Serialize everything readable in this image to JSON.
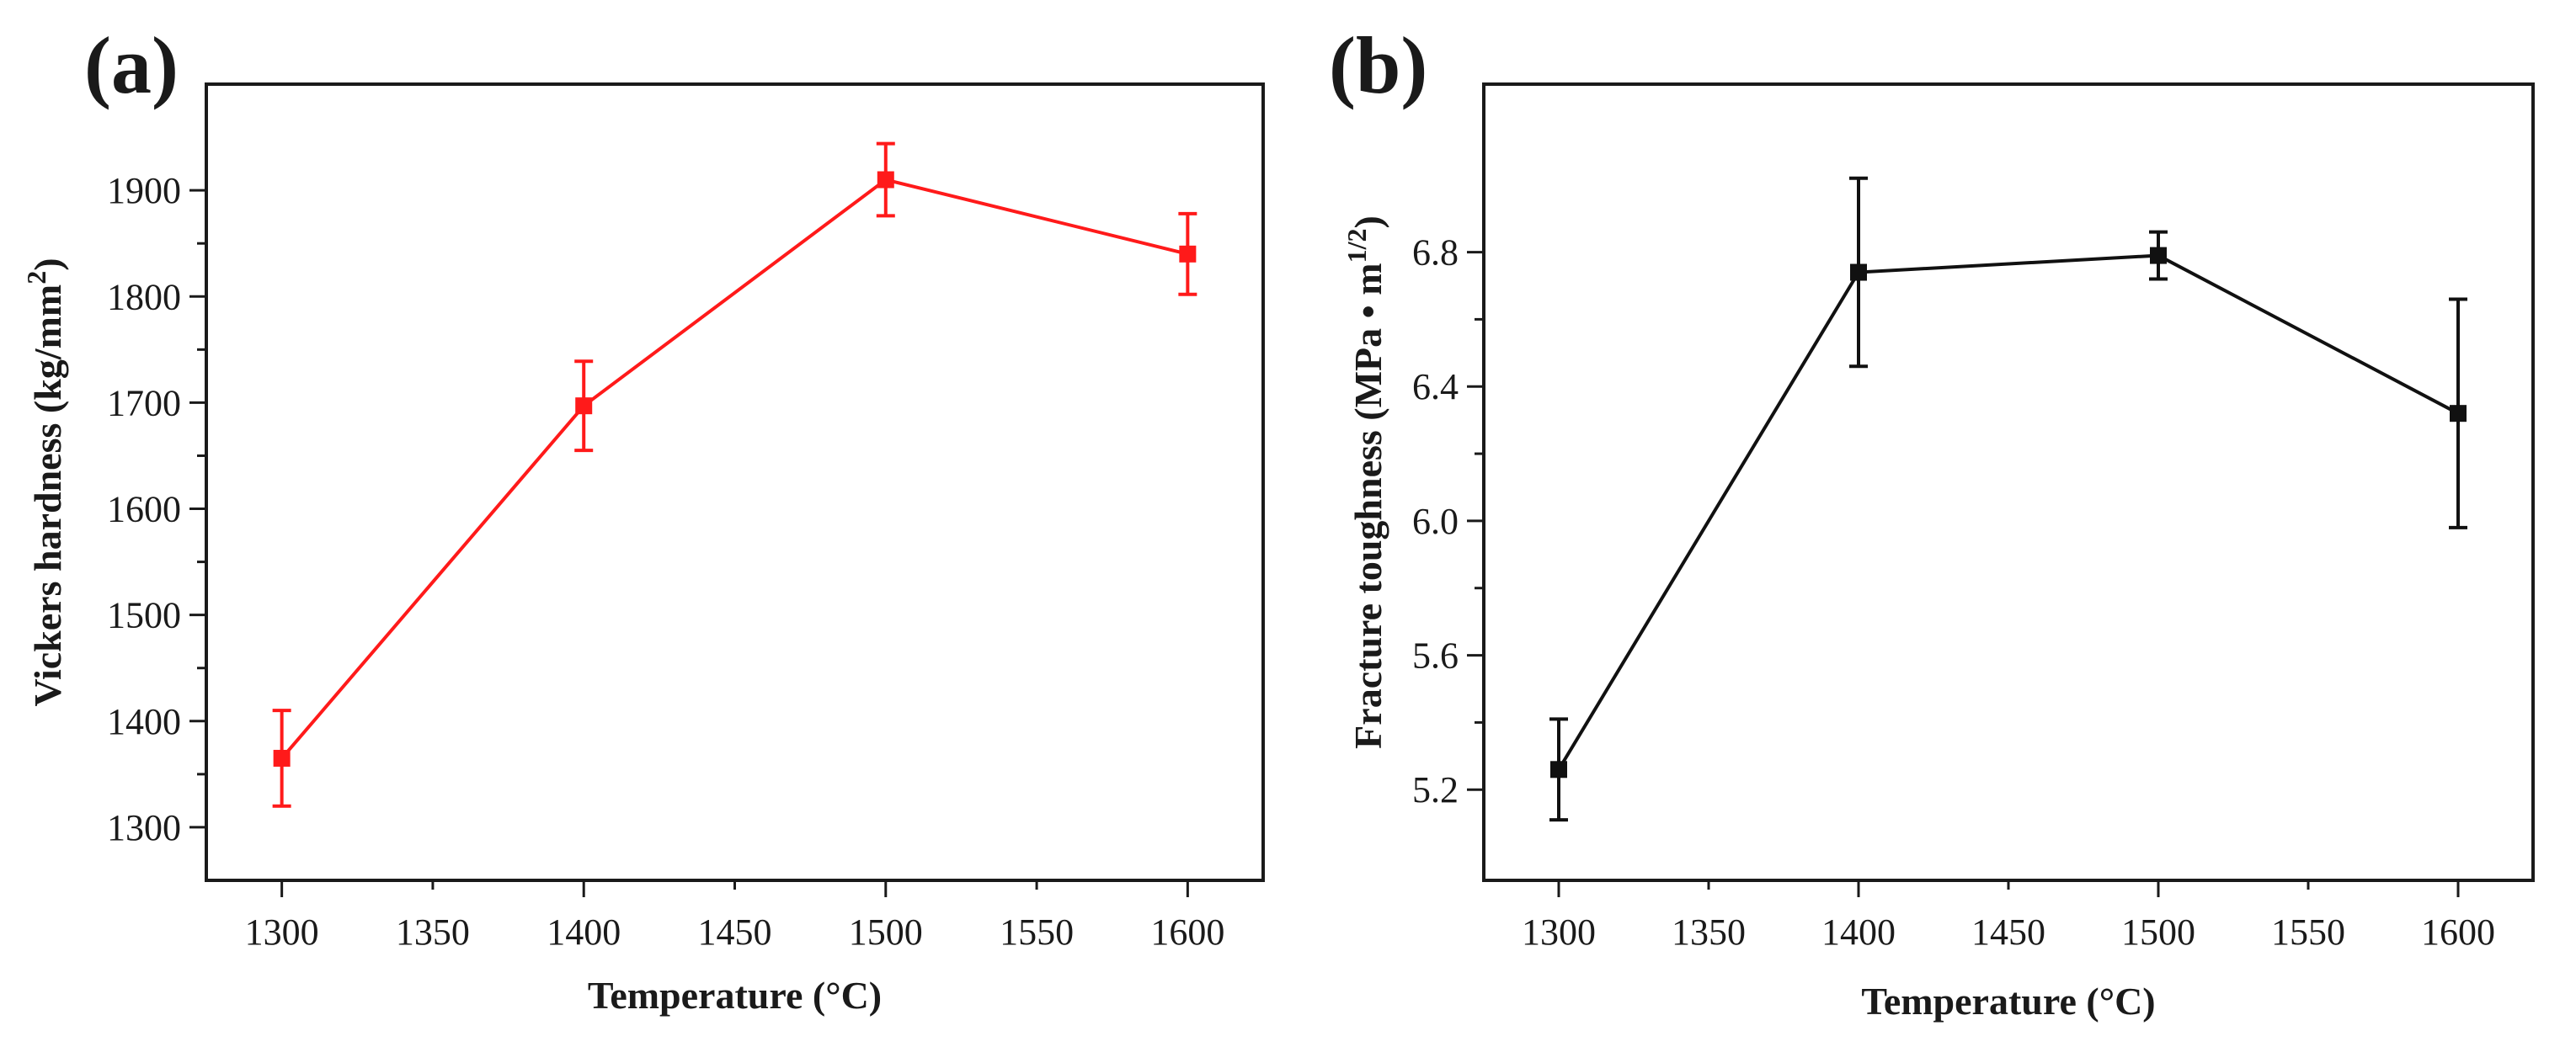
{
  "chart_data": [
    {
      "panel": "(a)",
      "type": "line",
      "xlabel": "Temperature (°C)",
      "ylabel": "Vickers hardness (kg/mm2)",
      "ylabel_main": "Vickers hardness (kg/mm",
      "ylabel_sup": "2",
      "ylabel_end": ")",
      "xlim": [
        1275,
        1625
      ],
      "ylim": [
        1250,
        2000
      ],
      "xticks": [
        1300,
        1350,
        1400,
        1450,
        1500,
        1550,
        1600
      ],
      "yticks": [
        1300,
        1400,
        1500,
        1600,
        1700,
        1800,
        1900
      ],
      "grid": false,
      "series": [
        {
          "name": "Vickers hardness",
          "color": "#ff1a1a",
          "marker": "square",
          "x": [
            1300,
            1400,
            1500,
            1600
          ],
          "y": [
            1365,
            1697,
            1910,
            1840
          ],
          "err": [
            45,
            42,
            34,
            38
          ]
        }
      ]
    },
    {
      "panel": "(b)",
      "type": "line",
      "xlabel": "Temperature (°C)",
      "ylabel": "Fracture toughness (MPa • m1/2)",
      "ylabel_main": "Fracture toughness (MPa • m",
      "ylabel_sup": "1/2",
      "ylabel_end": ")",
      "xlim": [
        1275,
        1625
      ],
      "ylim": [
        4.93,
        7.3
      ],
      "xticks": [
        1300,
        1350,
        1400,
        1450,
        1500,
        1550,
        1600
      ],
      "yticks": [
        5.2,
        5.6,
        6.0,
        6.4,
        6.8
      ],
      "ytick_labels": [
        "5.2",
        "5.6",
        "6.0",
        "6.4",
        "6.8"
      ],
      "grid": false,
      "series": [
        {
          "name": "Fracture toughness",
          "color": "#111111",
          "marker": "square",
          "x": [
            1300,
            1400,
            1500,
            1600
          ],
          "y": [
            5.26,
            6.74,
            6.79,
            6.32
          ],
          "err": [
            0.15,
            0.28,
            0.07,
            0.34
          ]
        }
      ]
    }
  ]
}
